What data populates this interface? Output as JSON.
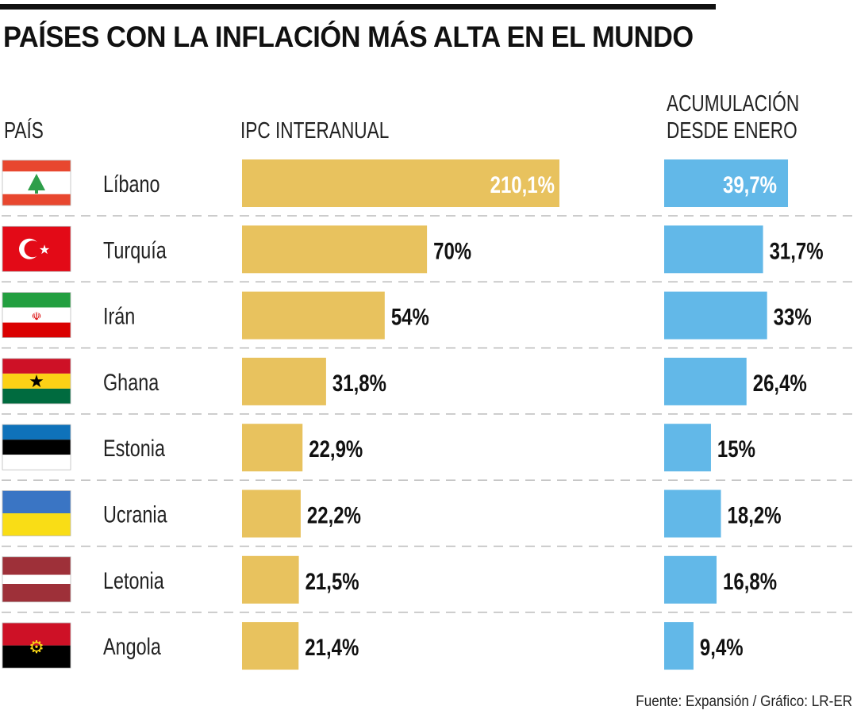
{
  "title": "PAÍSES CON LA INFLACIÓN MÁS ALTA EN EL MUNDO",
  "source": "Fuente: Expansión / Gráfico: LR-ER",
  "colors": {
    "ipc": "#E8C25E",
    "acum": "#62B8E8"
  },
  "chart_data": {
    "type": "bar",
    "title": "PAÍSES CON LA INFLACIÓN MÁS ALTA EN EL MUNDO",
    "column_headers": {
      "country": "PAÍS",
      "ipc": "IPC INTERANUAL",
      "acum_line1": "ACUMULACIÓN",
      "acum_line2": "DESDE ENERO"
    },
    "categories": [
      "Líbano",
      "Turquía",
      "Irán",
      "Ghana",
      "Estonia",
      "Ucrania",
      "Letonia",
      "Angola"
    ],
    "flags": [
      "lebanon-flag",
      "turkey-flag",
      "iran-flag",
      "ghana-flag",
      "estonia-flag",
      "ukraine-flag",
      "latvia-flag",
      "angola-flag"
    ],
    "series": [
      {
        "name": "IPC INTERANUAL",
        "unit": "%",
        "values": [
          210.1,
          70,
          54,
          31.8,
          22.9,
          22.2,
          21.5,
          21.4
        ],
        "labels": [
          "210,1%",
          "70%",
          "54%",
          "31,8%",
          "22,9%",
          "22,2%",
          "21,5%",
          "21,4%"
        ]
      },
      {
        "name": "ACUMULACIÓN DESDE ENERO",
        "unit": "%",
        "values": [
          39.7,
          31.7,
          33,
          26.4,
          15,
          18.2,
          16.8,
          9.4
        ],
        "labels": [
          "39,7%",
          "31,7%",
          "33%",
          "26,4%",
          "15%",
          "18,2%",
          "16,8%",
          "9,4%"
        ]
      }
    ],
    "axis_break": "IPC bar for Líbano is truncated (not to scale)"
  }
}
